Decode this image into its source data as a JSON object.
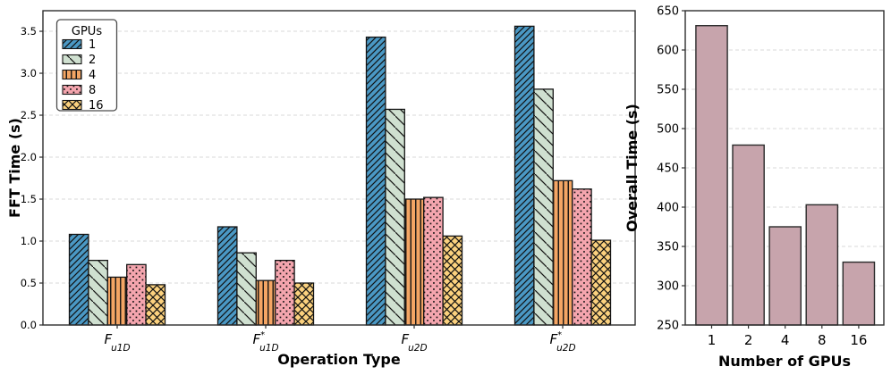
{
  "chart_data": [
    {
      "type": "bar",
      "layout": "grouped",
      "xlabel": "Operation Type",
      "ylabel": "FFT Time (s)",
      "categories": [
        {
          "base": "F",
          "sup": "",
          "sub": "u1D"
        },
        {
          "base": "F",
          "sup": "*",
          "sub": "u1D"
        },
        {
          "base": "F",
          "sup": "",
          "sub": "u2D"
        },
        {
          "base": "F",
          "sup": "*",
          "sub": "u2D"
        }
      ],
      "legend": {
        "title": "GPUs",
        "position": "upper-left"
      },
      "series": [
        {
          "name": "1",
          "color": "#4a98c4",
          "hatch": "//",
          "values": [
            1.08,
            1.17,
            3.43,
            3.56
          ]
        },
        {
          "name": "2",
          "color": "#cfe0d0",
          "hatch": "\\",
          "values": [
            0.77,
            0.86,
            2.57,
            2.81
          ]
        },
        {
          "name": "4",
          "color": "#f4a564",
          "hatch": "||",
          "values": [
            0.57,
            0.53,
            1.5,
            1.72
          ]
        },
        {
          "name": "8",
          "color": "#f4a5ae",
          "hatch": "..",
          "values": [
            0.72,
            0.77,
            1.52,
            1.62
          ]
        },
        {
          "name": "16",
          "color": "#fbd17e",
          "hatch": "xx",
          "values": [
            0.48,
            0.5,
            1.06,
            1.01
          ]
        }
      ],
      "ylim": [
        0,
        3.745
      ],
      "yticks": [
        "0.0",
        "0.5",
        "1.0",
        "1.5",
        "2.0",
        "2.5",
        "3.0",
        "3.5"
      ],
      "grid": true,
      "edge_color": "#141414"
    },
    {
      "type": "bar",
      "layout": "single",
      "xlabel": "Number of GPUs",
      "ylabel": "Overall Time (s)",
      "categories": [
        "1",
        "2",
        "4",
        "8",
        "16"
      ],
      "values": [
        631,
        479,
        375,
        403,
        330
      ],
      "bar_color": "#c7a4ac",
      "ylim": [
        250,
        650
      ],
      "yticks": [
        "250",
        "300",
        "350",
        "400",
        "450",
        "500",
        "550",
        "600",
        "650"
      ],
      "grid": true,
      "edge_color": "#2a2a2a"
    }
  ]
}
